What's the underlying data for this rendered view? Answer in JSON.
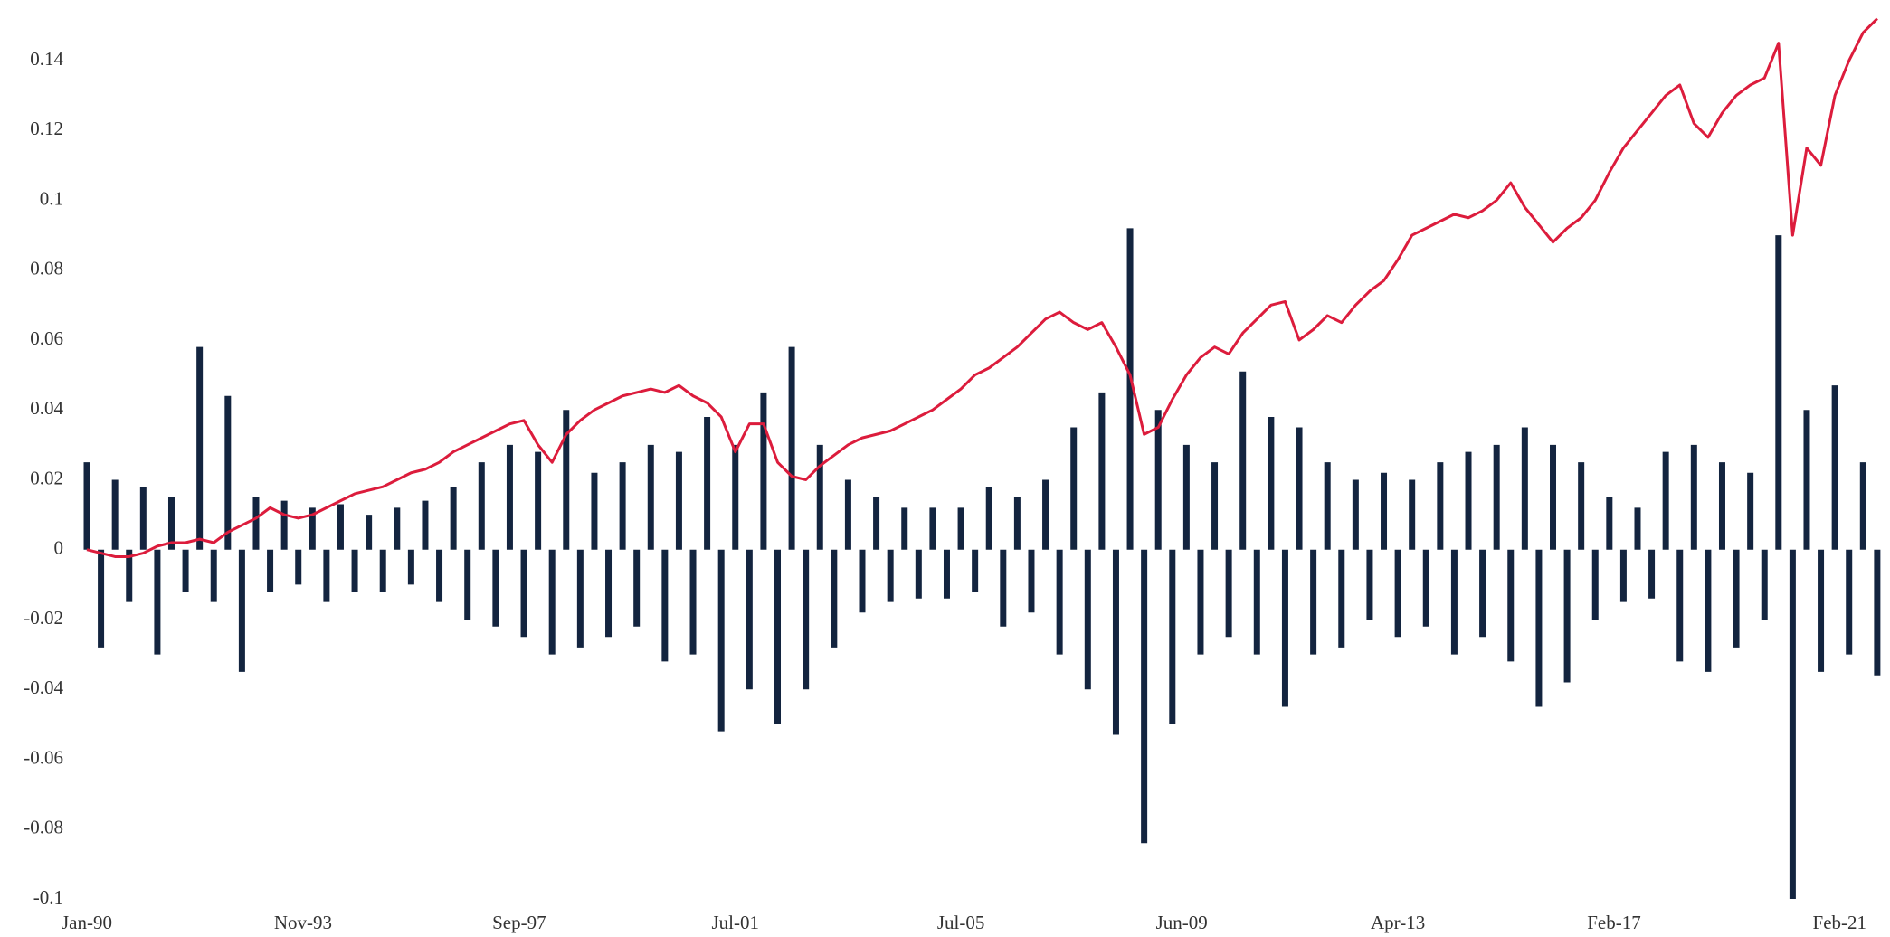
{
  "chart_data": {
    "type": "line",
    "x": [
      1990,
      1990.25,
      1990.5,
      1990.75,
      1991,
      1991.25,
      1991.5,
      1991.75,
      1992,
      1992.25,
      1992.5,
      1992.75,
      1993,
      1993.25,
      1993.5,
      1993.75,
      1994,
      1994.25,
      1994.5,
      1994.75,
      1995,
      1995.25,
      1995.5,
      1995.75,
      1996,
      1996.25,
      1996.5,
      1996.75,
      1997,
      1997.25,
      1997.5,
      1997.75,
      1998,
      1998.25,
      1998.5,
      1998.75,
      1999,
      1999.25,
      1999.5,
      1999.75,
      2000,
      2000.25,
      2000.5,
      2000.75,
      2001,
      2001.25,
      2001.5,
      2001.75,
      2002,
      2002.25,
      2002.5,
      2002.75,
      2003,
      2003.25,
      2003.5,
      2003.75,
      2004,
      2004.25,
      2004.5,
      2004.75,
      2005,
      2005.25,
      2005.5,
      2005.75,
      2006,
      2006.25,
      2006.5,
      2006.75,
      2007,
      2007.25,
      2007.5,
      2007.75,
      2008,
      2008.25,
      2008.5,
      2008.75,
      2009,
      2009.25,
      2009.5,
      2009.75,
      2010,
      2010.25,
      2010.5,
      2010.75,
      2011,
      2011.25,
      2011.5,
      2011.75,
      2012,
      2012.25,
      2012.5,
      2012.75,
      2013,
      2013.25,
      2013.5,
      2013.75,
      2014,
      2014.25,
      2014.5,
      2014.75,
      2015,
      2015.25,
      2015.5,
      2015.75,
      2016,
      2016.25,
      2016.5,
      2016.75,
      2017,
      2017.25,
      2017.5,
      2017.75,
      2018,
      2018.25,
      2018.5,
      2018.75,
      2019,
      2019.25,
      2019.5,
      2019.75,
      2020,
      2020.25,
      2020.5,
      2020.75,
      2021,
      2021.25,
      2021.5,
      2021.75
    ],
    "series": [
      {
        "type": "bar",
        "color": "#13243f",
        "values": [
          0.025,
          -0.028,
          0.02,
          -0.015,
          0.018,
          -0.03,
          0.015,
          -0.012,
          0.058,
          -0.015,
          0.044,
          -0.035,
          0.015,
          -0.012,
          0.014,
          -0.01,
          0.012,
          -0.015,
          0.013,
          -0.012,
          0.01,
          -0.012,
          0.012,
          -0.01,
          0.014,
          -0.015,
          0.018,
          -0.02,
          0.025,
          -0.022,
          0.03,
          -0.025,
          0.028,
          -0.03,
          0.04,
          -0.028,
          0.022,
          -0.025,
          0.025,
          -0.022,
          0.03,
          -0.032,
          0.028,
          -0.03,
          0.038,
          -0.052,
          0.03,
          -0.04,
          0.045,
          -0.05,
          0.058,
          -0.04,
          0.03,
          -0.028,
          0.02,
          -0.018,
          0.015,
          -0.015,
          0.012,
          -0.014,
          0.012,
          -0.014,
          0.012,
          -0.012,
          0.018,
          -0.022,
          0.015,
          -0.018,
          0.02,
          -0.03,
          0.035,
          -0.04,
          0.045,
          -0.053,
          0.092,
          -0.084,
          0.04,
          -0.05,
          0.03,
          -0.03,
          0.025,
          -0.025,
          0.051,
          -0.03,
          0.038,
          -0.045,
          0.035,
          -0.03,
          0.025,
          -0.028,
          0.02,
          -0.02,
          0.022,
          -0.025,
          0.02,
          -0.022,
          0.025,
          -0.03,
          0.028,
          -0.025,
          0.03,
          -0.032,
          0.035,
          -0.045,
          0.03,
          -0.038,
          0.025,
          -0.02,
          0.015,
          -0.015,
          0.012,
          -0.014,
          0.028,
          -0.032,
          0.03,
          -0.035,
          0.025,
          -0.028,
          0.022,
          -0.02,
          0.09,
          -0.1,
          0.04,
          -0.035,
          0.047,
          -0.03,
          0.025,
          -0.036
        ]
      },
      {
        "type": "line",
        "color": "#dc1c3c",
        "values": [
          0.0,
          -0.001,
          -0.002,
          -0.002,
          -0.001,
          0.001,
          0.002,
          0.002,
          0.003,
          0.002,
          0.005,
          0.007,
          0.009,
          0.012,
          0.01,
          0.009,
          0.01,
          0.012,
          0.014,
          0.016,
          0.017,
          0.018,
          0.02,
          0.022,
          0.023,
          0.025,
          0.028,
          0.03,
          0.032,
          0.034,
          0.036,
          0.037,
          0.03,
          0.025,
          0.033,
          0.037,
          0.04,
          0.042,
          0.044,
          0.045,
          0.046,
          0.045,
          0.047,
          0.044,
          0.042,
          0.038,
          0.028,
          0.036,
          0.036,
          0.025,
          0.021,
          0.02,
          0.024,
          0.027,
          0.03,
          0.032,
          0.033,
          0.034,
          0.036,
          0.038,
          0.04,
          0.043,
          0.046,
          0.05,
          0.052,
          0.055,
          0.058,
          0.062,
          0.066,
          0.068,
          0.065,
          0.063,
          0.065,
          0.058,
          0.05,
          0.033,
          0.035,
          0.043,
          0.05,
          0.055,
          0.058,
          0.056,
          0.062,
          0.066,
          0.07,
          0.071,
          0.06,
          0.063,
          0.067,
          0.065,
          0.07,
          0.074,
          0.077,
          0.083,
          0.09,
          0.092,
          0.094,
          0.096,
          0.095,
          0.097,
          0.1,
          0.105,
          0.098,
          0.093,
          0.088,
          0.092,
          0.095,
          0.1,
          0.108,
          0.115,
          0.12,
          0.125,
          0.13,
          0.133,
          0.122,
          0.118,
          0.125,
          0.13,
          0.133,
          0.135,
          0.145,
          0.09,
          0.115,
          0.11,
          0.13,
          0.14,
          0.148,
          0.152
        ]
      }
    ],
    "xlim": [
      1990,
      2021.8
    ],
    "xticks": [
      {
        "value": 1990,
        "label": "Jan-90"
      },
      {
        "value": 1993.833,
        "label": "Nov-93"
      },
      {
        "value": 1997.667,
        "label": "Sep-97"
      },
      {
        "value": 2001.5,
        "label": "Jul-01"
      },
      {
        "value": 2005.5,
        "label": "Jul-05"
      },
      {
        "value": 2009.417,
        "label": "Jun-09"
      },
      {
        "value": 2013.25,
        "label": "Apr-13"
      },
      {
        "value": 2017.083,
        "label": "Feb-17"
      },
      {
        "value": 2021.083,
        "label": "Feb-21"
      }
    ],
    "ylim": [
      -0.1,
      0.155
    ],
    "yticks": [
      -0.1,
      -0.08,
      -0.06,
      -0.04,
      -0.02,
      0,
      0.02,
      0.04,
      0.06,
      0.08,
      0.1,
      0.12,
      0.14
    ],
    "grid": false
  }
}
